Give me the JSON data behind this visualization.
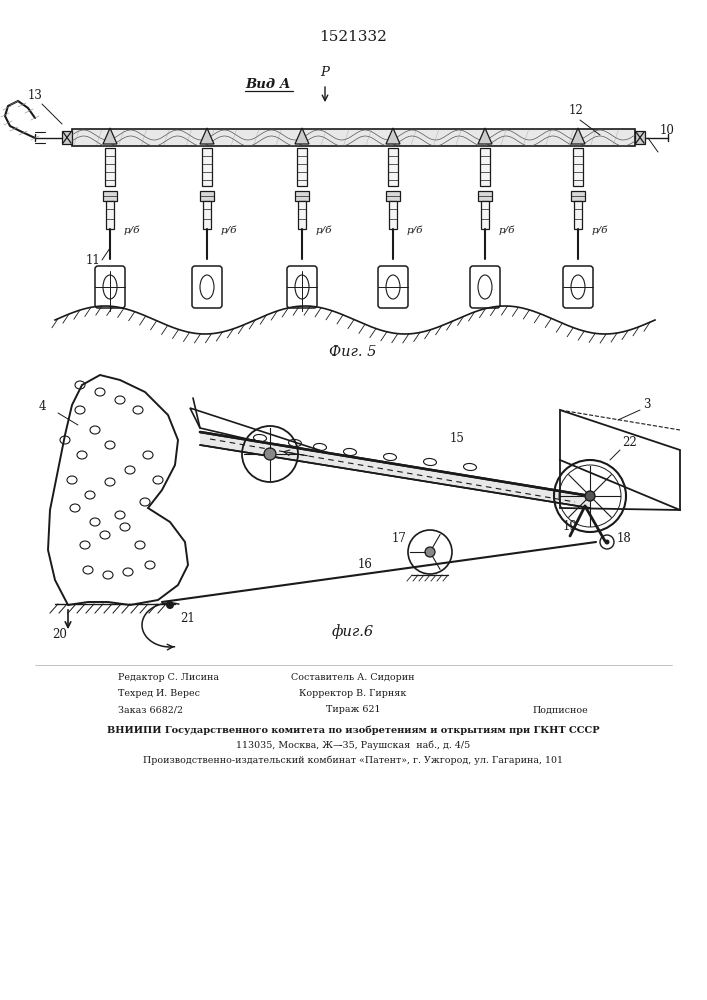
{
  "title_number": "1521332",
  "fig5_label": "Фиг. 5",
  "fig6_label": "фиг.6",
  "vid_a_label": "Вид A",
  "p_label": "P",
  "editor_text": "Редактор С. Лисина",
  "composer_text": "Составитель А. Сидорин",
  "techred_text": "Техред И. Верес",
  "corrector_text": "Корректор В. Гирняк",
  "order_text": "Заказ 6682/2",
  "tirazh_text": "Тираж 621",
  "podpisnoe_text": "Подписное",
  "vniip_text": "ВНИИПИ Государственного комитета по изобретениям и открытиям при ГКНТ СССР",
  "addr1_text": "113035, Москва, Ж—̵35, Раушская  наб., д. 4/5",
  "addr2_text": "Производственно-издательский комбинат «Патент», г. Ужгород, ул. Гагарина, 101",
  "bg_color": "#ffffff",
  "line_color": "#1a1a1a"
}
